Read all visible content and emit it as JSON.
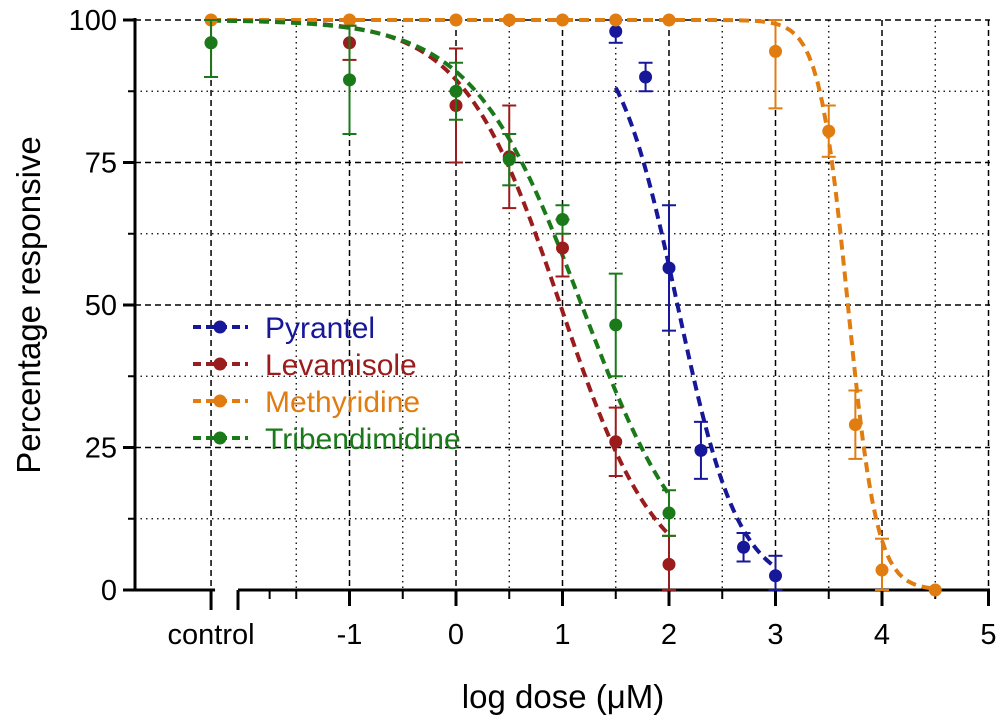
{
  "chart_data": {
    "type": "line",
    "title": "",
    "xlabel": "log dose (μM)",
    "ylabel": "Percentage responsive",
    "xlim": [
      -2.6,
      5
    ],
    "ylim": [
      0,
      100
    ],
    "x_ticks": [
      -1,
      0,
      1,
      2,
      3,
      4,
      5
    ],
    "x_tick_labels": [
      "-1",
      "0",
      "1",
      "2",
      "3",
      "4",
      "5"
    ],
    "x_minor_ticks": [
      -1.5,
      -0.5,
      0.5,
      1.5,
      2.5,
      3.5,
      4.5
    ],
    "y_ticks": [
      0,
      25,
      50,
      75,
      100
    ],
    "y_tick_labels": [
      "0",
      "25",
      "50",
      "75",
      "100"
    ],
    "y_minor_grid": [
      12.5,
      37.5,
      62.5,
      87.5
    ],
    "control_x": -2.3,
    "control_label": "control",
    "axis_break_after": -2.0,
    "grid": true,
    "legend": {
      "position": "center-left"
    },
    "series": [
      {
        "name": "Pyrantel",
        "color": "#17179a",
        "curve": {
          "top": 100,
          "bottom": 0,
          "logEC50": 2.08,
          "hill": -1.5,
          "x_range": [
            1.5,
            3.0
          ]
        },
        "points": [
          {
            "x": 1.5,
            "y": 98,
            "err": 2
          },
          {
            "x": 1.78,
            "y": 90,
            "err": 2.5
          },
          {
            "x": 2.0,
            "y": 56.5,
            "err": 11
          },
          {
            "x": 2.3,
            "y": 24.5,
            "err": 5
          },
          {
            "x": 2.7,
            "y": 7.5,
            "err": 2.5
          },
          {
            "x": 3.0,
            "y": 2.5,
            "err": 3.5
          }
        ]
      },
      {
        "name": "Levamisole",
        "color": "#9a1c1c",
        "curve": {
          "top": 100,
          "bottom": 0,
          "logEC50": 0.98,
          "hill": -0.95,
          "x_range": [
            -2.3,
            2.0
          ]
        },
        "points": [
          {
            "x": -2.3,
            "y": 96,
            "err": 6
          },
          {
            "x": -1.0,
            "y": 96,
            "err": 3
          },
          {
            "x": 0.0,
            "y": 85,
            "err": 10
          },
          {
            "x": 0.5,
            "y": 76,
            "err": 9
          },
          {
            "x": 1.0,
            "y": 60,
            "err": 5
          },
          {
            "x": 1.5,
            "y": 26,
            "err": 6
          },
          {
            "x": 2.0,
            "y": 4.5,
            "err": 5
          }
        ]
      },
      {
        "name": "Methyridine",
        "color": "#e07c10",
        "curve": {
          "top": 100,
          "bottom": 0,
          "logEC50": 3.68,
          "hill": -3.2,
          "x_range": [
            -2.3,
            4.5
          ]
        },
        "points": [
          {
            "x": -2.3,
            "y": 100,
            "err": 0
          },
          {
            "x": -1.0,
            "y": 100,
            "err": 0
          },
          {
            "x": 0.0,
            "y": 100,
            "err": 0
          },
          {
            "x": 0.5,
            "y": 100,
            "err": 0
          },
          {
            "x": 1.0,
            "y": 100,
            "err": 0
          },
          {
            "x": 1.5,
            "y": 100,
            "err": 0
          },
          {
            "x": 2.0,
            "y": 100,
            "err": 0
          },
          {
            "x": 3.0,
            "y": 94.5,
            "err": 10
          },
          {
            "x": 3.5,
            "y": 80.5,
            "err": 4.5
          },
          {
            "x": 3.75,
            "y": 29,
            "err": 6
          },
          {
            "x": 4.0,
            "y": 3.5,
            "err": 5.5
          },
          {
            "x": 4.5,
            "y": 0,
            "err": 0
          }
        ]
      },
      {
        "name": "Tribendimidine",
        "color": "#1a7a1a",
        "curve": {
          "top": 100,
          "bottom": 0,
          "logEC50": 1.18,
          "hill": -0.85,
          "x_range": [
            -2.3,
            2.0
          ]
        },
        "points": [
          {
            "x": -2.3,
            "y": 96,
            "err": 6
          },
          {
            "x": -1.0,
            "y": 89.5,
            "err": 9.5
          },
          {
            "x": 0.0,
            "y": 87.5,
            "err": 5
          },
          {
            "x": 0.5,
            "y": 75.5,
            "err": 4.5
          },
          {
            "x": 1.0,
            "y": 65,
            "err": 2.5
          },
          {
            "x": 1.5,
            "y": 46.5,
            "err": 9
          },
          {
            "x": 2.0,
            "y": 13.5,
            "err": 4
          }
        ]
      }
    ]
  }
}
